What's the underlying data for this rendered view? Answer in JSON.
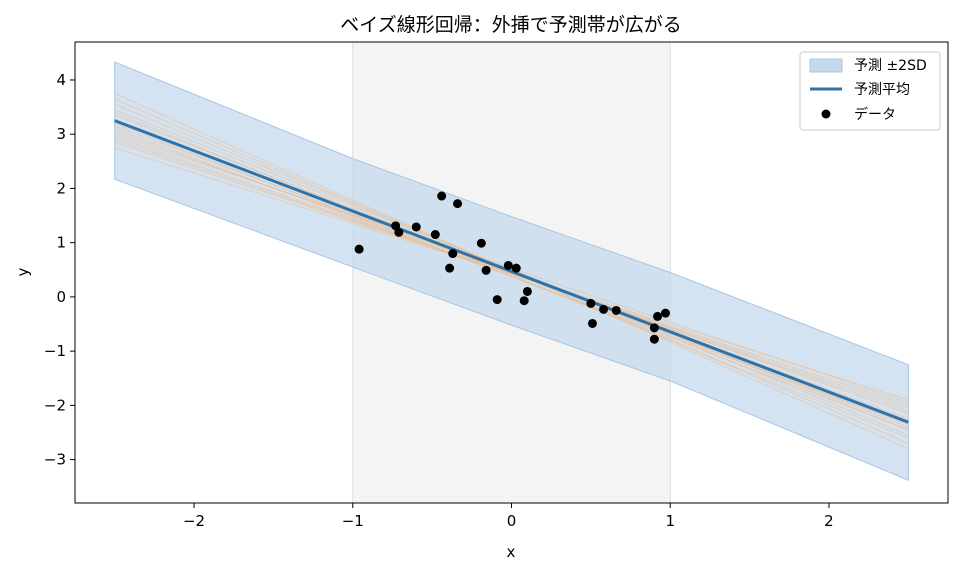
{
  "chart_data": {
    "type": "scatter",
    "title": "ベイズ線形回帰：外挿で予測帯が広がる",
    "xlabel": "x",
    "ylabel": "y",
    "xlim": [
      -2.75,
      2.75
    ],
    "ylim": [
      -3.8,
      4.7
    ],
    "xticks": [
      -2,
      -1,
      0,
      1,
      2
    ],
    "yticks": [
      -3,
      -2,
      -1,
      0,
      1,
      2,
      3,
      4
    ],
    "xtick_labels": [
      "−2",
      "−1",
      "0",
      "1",
      "2"
    ],
    "ytick_labels": [
      "−3",
      "−2",
      "−1",
      "0",
      "1",
      "2",
      "3",
      "4"
    ],
    "grid": false,
    "legend_position": "top-right",
    "training_region": [
      -1,
      1
    ],
    "band": {
      "name": "予測 ±2SD",
      "x": [
        -2.5,
        -1,
        0,
        1,
        2.5
      ],
      "upper": [
        4.33,
        2.55,
        1.48,
        0.45,
        -1.25
      ],
      "lower": [
        2.17,
        0.55,
        -0.52,
        -1.55,
        -3.38
      ],
      "color": "#c4d9ec"
    },
    "mean": {
      "name": "予測平均",
      "x": [
        -2.5,
        2.5
      ],
      "y": [
        3.25,
        -2.31
      ],
      "color": "#2c73ab"
    },
    "samples": {
      "color": "#f0b98a",
      "lines": [
        [
          3.55,
          -2.55
        ],
        [
          3.45,
          -2.45
        ],
        [
          3.35,
          -2.4
        ],
        [
          3.25,
          -2.3
        ],
        [
          3.15,
          -2.25
        ],
        [
          3.05,
          -2.15
        ],
        [
          2.95,
          -2.1
        ],
        [
          2.85,
          -2.0
        ],
        [
          2.75,
          -1.9
        ],
        [
          3.65,
          -2.7
        ],
        [
          3.4,
          -2.6
        ],
        [
          3.1,
          -2.35
        ],
        [
          2.9,
          -2.05
        ],
        [
          3.75,
          -2.8
        ],
        [
          3.0,
          -1.95
        ],
        [
          3.2,
          -2.45
        ]
      ]
    },
    "points": {
      "name": "データ",
      "color": "#000000",
      "x": [
        -0.96,
        -0.73,
        -0.71,
        -0.6,
        -0.48,
        -0.44,
        -0.39,
        -0.37,
        -0.34,
        -0.19,
        -0.16,
        -0.09,
        -0.02,
        0.03,
        0.08,
        0.1,
        0.5,
        0.51,
        0.58,
        0.66,
        0.9,
        0.9,
        0.92,
        0.97
      ],
      "y": [
        0.88,
        1.31,
        1.19,
        1.29,
        1.15,
        1.86,
        0.53,
        0.8,
        1.72,
        0.99,
        0.49,
        -0.05,
        0.58,
        0.53,
        -0.07,
        0.1,
        -0.12,
        -0.49,
        -0.23,
        -0.25,
        -0.57,
        -0.78,
        -0.36,
        -0.3
      ]
    }
  }
}
